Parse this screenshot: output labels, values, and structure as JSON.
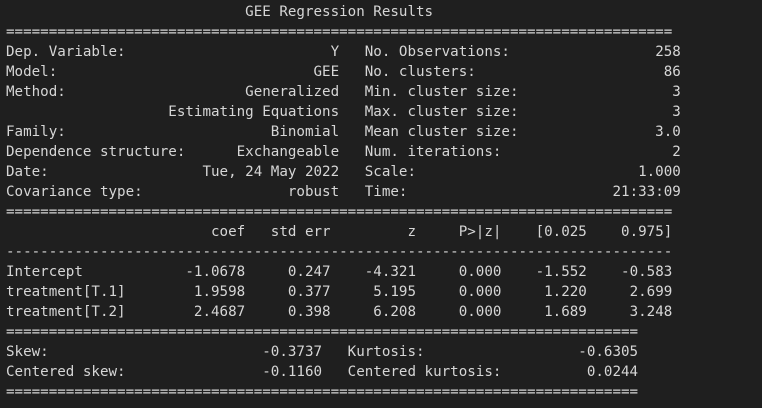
{
  "report": {
    "title": "GEE Regression Results",
    "sep_eq": "==============================================================================",
    "sep_dash": "------------------------------------------------------------------------------",
    "info": [
      {
        "l_label": "Dep. Variable:",
        "l_value": "Y",
        "r_label": "No. Observations:",
        "r_value": "258"
      },
      {
        "l_label": "Model:",
        "l_value": "GEE",
        "r_label": "No. clusters:",
        "r_value": "86"
      },
      {
        "l_label": "Method:",
        "l_value": "Generalized",
        "r_label": "Min. cluster size:",
        "r_value": "3"
      },
      {
        "l_label": "",
        "l_value": "Estimating Equations",
        "r_label": "Max. cluster size:",
        "r_value": "3"
      },
      {
        "l_label": "Family:",
        "l_value": "Binomial",
        "r_label": "Mean cluster size:",
        "r_value": "3.0"
      },
      {
        "l_label": "Dependence structure:",
        "l_value": "Exchangeable",
        "r_label": "Num. iterations:",
        "r_value": "2"
      },
      {
        "l_label": "Date:",
        "l_value": "Tue, 24 May 2022",
        "r_label": "Scale:",
        "r_value": "1.000"
      },
      {
        "l_label": "Covariance type:",
        "l_value": "robust",
        "r_label": "Time:",
        "r_value": "21:33:09"
      }
    ],
    "coef_headers": [
      "coef",
      "std err",
      "z",
      "P>|z|",
      "[0.025",
      "0.975]"
    ],
    "coef_rows": [
      {
        "name": "Intercept",
        "vals": [
          "-1.0678",
          "0.247",
          "-4.321",
          "0.000",
          "-1.552",
          "-0.583"
        ]
      },
      {
        "name": "treatment[T.1]",
        "vals": [
          "1.9598",
          "0.377",
          "5.195",
          "0.000",
          "1.220",
          "2.699"
        ]
      },
      {
        "name": "treatment[T.2]",
        "vals": [
          "2.4687",
          "0.398",
          "6.208",
          "0.000",
          "1.689",
          "3.248"
        ]
      }
    ],
    "diagnostics": [
      {
        "l_label": "Skew:",
        "l_value": "-0.3737",
        "r_label": "Kurtosis:",
        "r_value": "-0.6305"
      },
      {
        "l_label": "Centered skew:",
        "l_value": "-0.1160",
        "r_label": "Centered kurtosis:",
        "r_value": "0.0244"
      }
    ],
    "sep_eq_short": "=========================================================================="
  },
  "colors": {
    "background": "#1f1f1f",
    "text": "#d6d6d6"
  }
}
